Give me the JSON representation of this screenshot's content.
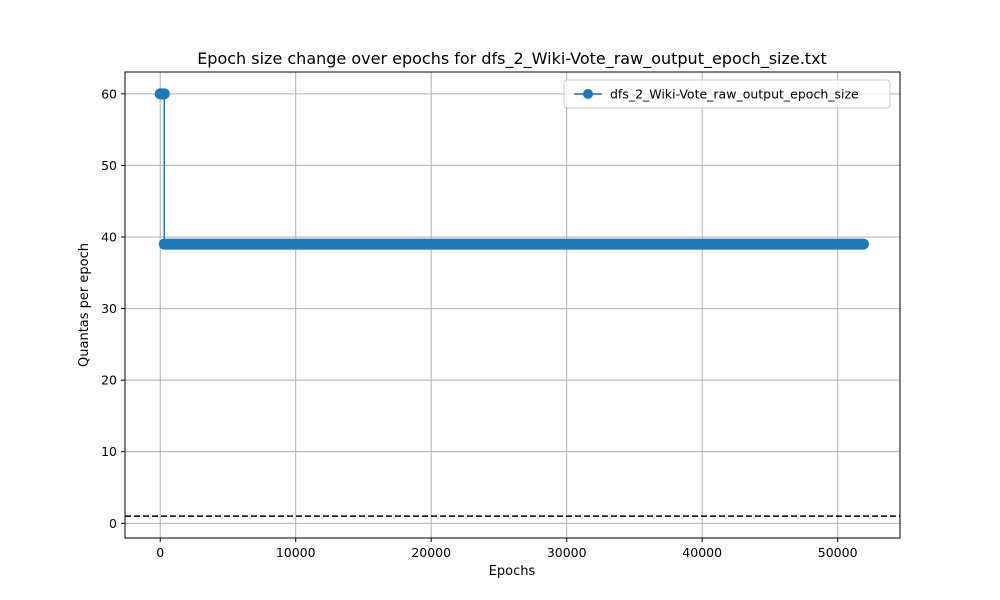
{
  "chart_data": {
    "type": "line",
    "title": "Epoch size change over epochs for dfs_2_Wiki-Vote_raw_output_epoch_size.txt",
    "xlabel": "Epochs",
    "ylabel": "Quantas per epoch",
    "xlim": [
      -2600,
      54600
    ],
    "ylim": [
      -2.05,
      63.05
    ],
    "xticks": [
      0,
      10000,
      20000,
      30000,
      40000,
      50000
    ],
    "yticks": [
      0,
      10,
      20,
      30,
      40,
      50,
      60
    ],
    "grid": true,
    "legend_position": "upper right",
    "series": [
      {
        "name": "dfs_2_Wiki-Vote_raw_output_epoch_size",
        "color": "#1f77b4",
        "marker": "circle",
        "segments": [
          {
            "x_start": 0,
            "x_end": 300,
            "y": 60
          },
          {
            "x_start": 300,
            "x_end": 51900,
            "y": 39
          }
        ]
      }
    ],
    "reference_lines": [
      {
        "type": "horizontal",
        "y": 1,
        "style": "dashed",
        "color": "#000000"
      }
    ]
  }
}
